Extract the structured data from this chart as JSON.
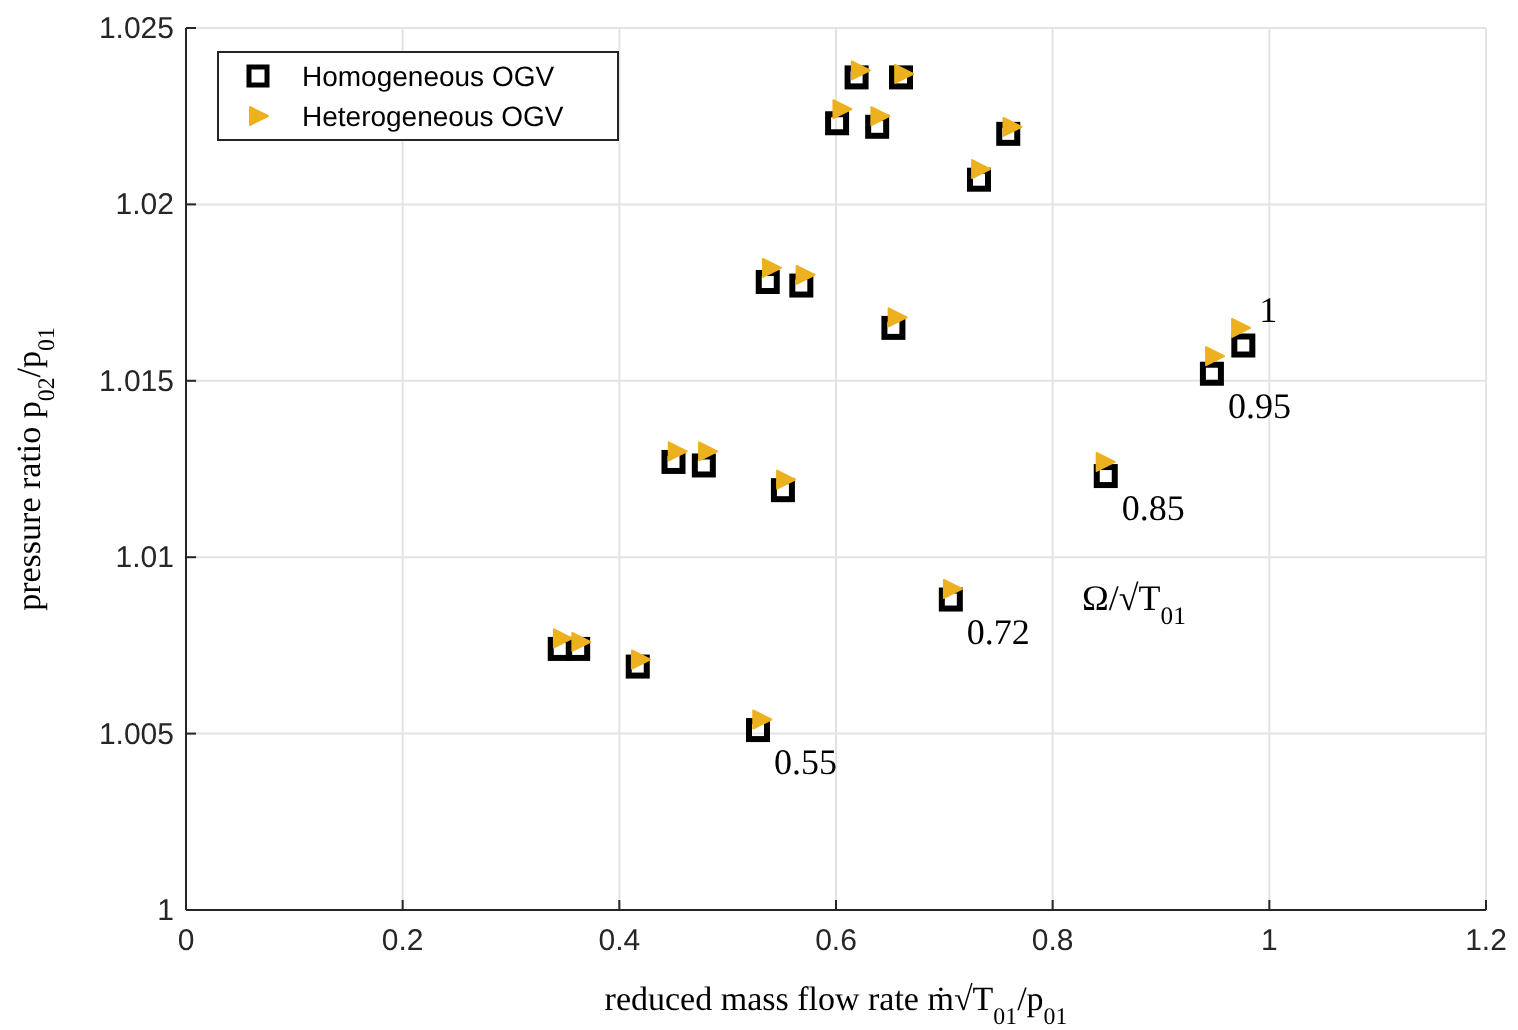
{
  "chart_data": {
    "type": "scatter",
    "xlabel": "reduced mass flow rate ṁ√T$_{01}$/p$_{01}$",
    "ylabel": "pressure ratio p$_{02}$/p$_{01}$",
    "xlim": [
      0,
      1.2
    ],
    "xticks": [
      0,
      0.2,
      0.4,
      0.6,
      0.8,
      1,
      1.2
    ],
    "ylim": [
      1,
      1.025
    ],
    "yticks": [
      1,
      1.005,
      1.01,
      1.015,
      1.02,
      1.025
    ],
    "grid": true,
    "legend": "top left",
    "series": [
      {
        "name": "Homogeneous OGV",
        "color": "#000000",
        "marker": "square",
        "x": [
          0.345,
          0.362,
          0.417,
          0.528,
          0.45,
          0.478,
          0.551,
          0.706,
          0.537,
          0.568,
          0.653,
          0.849,
          0.601,
          0.638,
          0.732,
          0.947,
          0.619,
          0.66,
          0.759,
          0.976
        ],
        "values": [
          1.0074,
          1.0074,
          1.0069,
          1.0051,
          1.0127,
          1.0126,
          1.0119,
          1.0088,
          1.0178,
          1.0177,
          1.0165,
          1.0123,
          1.0223,
          1.0222,
          1.0207,
          1.0152,
          1.0236,
          1.0236,
          1.022,
          1.016
        ]
      },
      {
        "name": "Heterogeneous OGV",
        "color": "#edb120",
        "marker": "triangle",
        "x": [
          0.347,
          0.364,
          0.419,
          0.531,
          0.453,
          0.481,
          0.553,
          0.707,
          0.54,
          0.571,
          0.656,
          0.848,
          0.605,
          0.64,
          0.733,
          0.949,
          0.622,
          0.662,
          0.762,
          0.973
        ],
        "values": [
          1.0077,
          1.0076,
          1.0071,
          1.0054,
          1.013,
          1.013,
          1.0122,
          1.0091,
          1.0182,
          1.018,
          1.0168,
          1.0127,
          1.0227,
          1.0225,
          1.021,
          1.0157,
          1.0238,
          1.0237,
          1.0222,
          1.0165
        ]
      }
    ],
    "annotations": [
      {
        "text": "0.55",
        "x": 0.528,
        "y": 1.0051
      },
      {
        "text": "0.72",
        "x": 0.706,
        "y": 1.0088
      },
      {
        "text": "0.85",
        "x": 0.849,
        "y": 1.0123
      },
      {
        "text": "0.95",
        "x": 0.947,
        "y": 1.0152
      },
      {
        "text": "1",
        "x": 0.976,
        "y": 1.016
      },
      "Ω/√T$_{01}$"
    ]
  }
}
